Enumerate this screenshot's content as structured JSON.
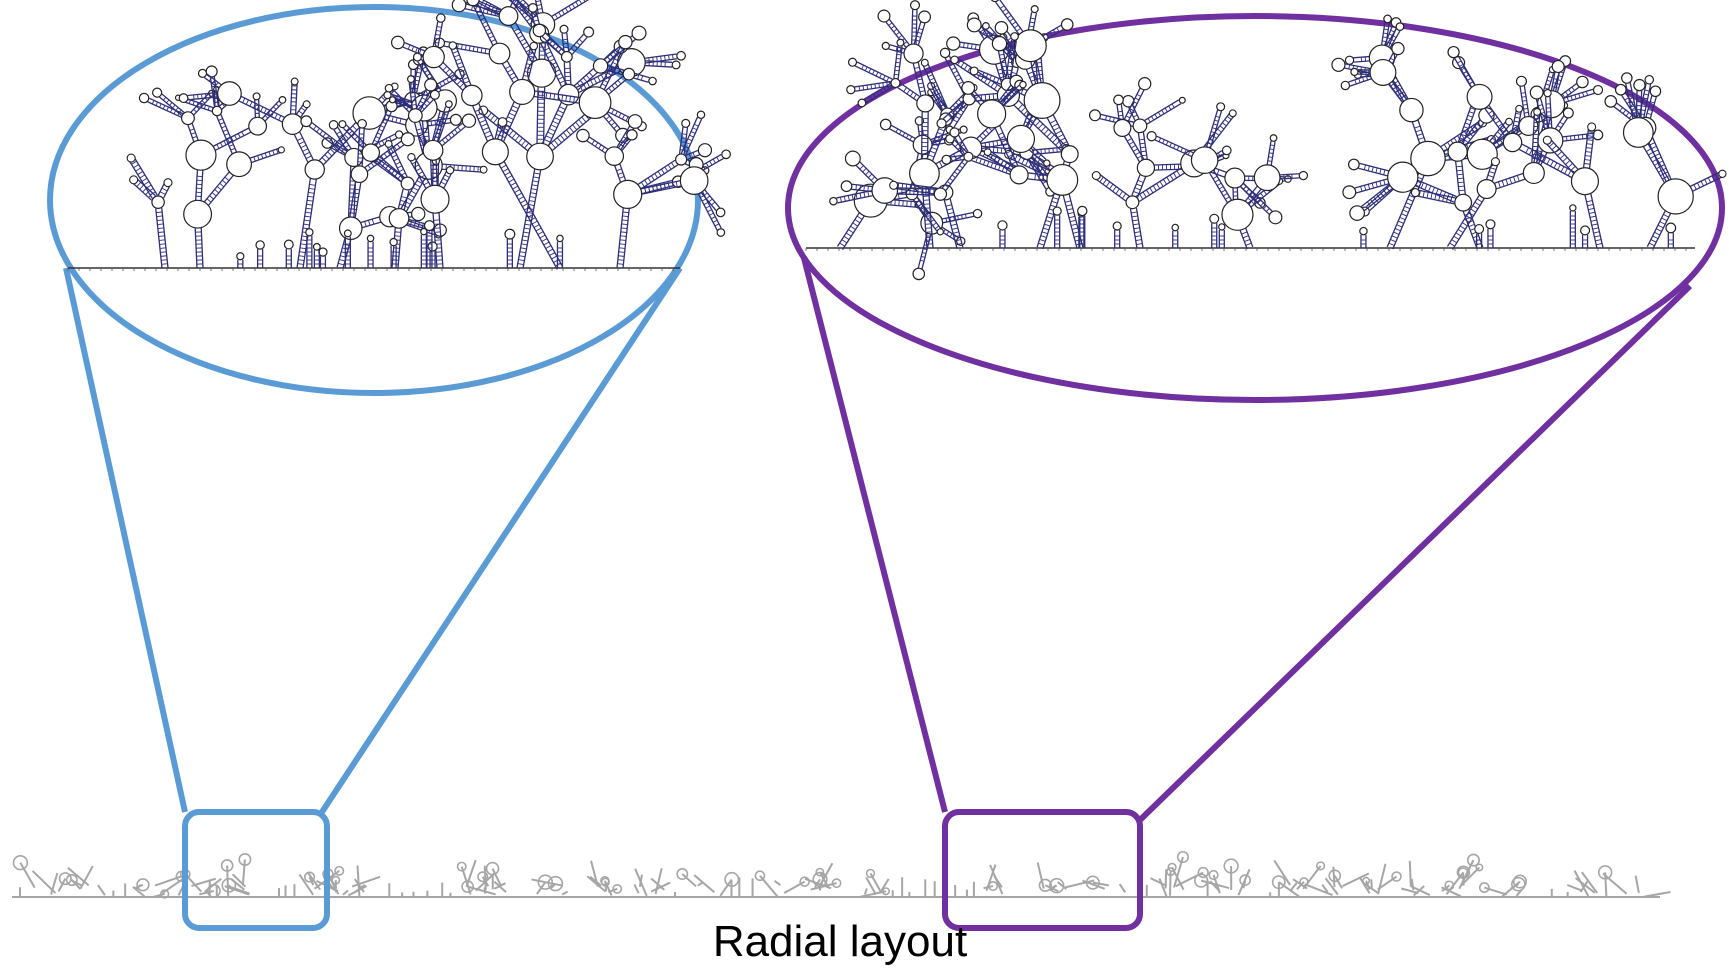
{
  "caption": "Radial layout",
  "colors": {
    "blue_zoom": "#5b9bd5",
    "purple_zoom": "#7030a0",
    "structure_overview": "#a6a6a6",
    "structure_detail": "#2e2e7a",
    "loop_outline": "#222222"
  },
  "zooms": [
    {
      "name": "left-zoom",
      "color_key": "blue_zoom"
    },
    {
      "name": "right-zoom",
      "color_key": "purple_zoom"
    }
  ]
}
